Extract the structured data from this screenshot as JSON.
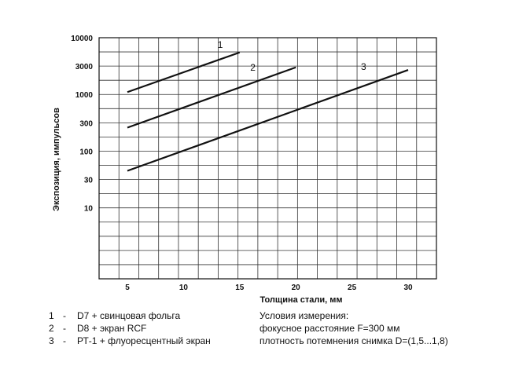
{
  "chart_data": {
    "type": "line",
    "xlabel": "Толщина стали, мм",
    "ylabel": "Экспозиция, импульсов",
    "x_ticks": [
      5,
      10,
      15,
      20,
      25,
      30
    ],
    "y_ticks": [
      "10000",
      "3000",
      "1000",
      "300",
      "100",
      "30",
      "10"
    ],
    "y_scale": "log",
    "grid": true,
    "series": [
      {
        "name": "1",
        "x": [
          5,
          15
        ],
        "y": [
          1100,
          5500
        ]
      },
      {
        "name": "2",
        "x": [
          5,
          20
        ],
        "y": [
          260,
          3000
        ]
      },
      {
        "name": "3",
        "x": [
          5,
          30
        ],
        "y": [
          45,
          2700
        ]
      }
    ]
  },
  "legend": [
    {
      "num": "1",
      "dash": "-",
      "text": "D7 + свинцовая фольга"
    },
    {
      "num": "2",
      "dash": "-",
      "text": "D8 + экран RCF"
    },
    {
      "num": "3",
      "dash": "-",
      "text": "РТ-1 + флуоресцентный экран"
    }
  ],
  "conditions": [
    "Условия измерения:",
    "фокусное расстояние F=300 мм",
    "плотность потемнения снимка D=(1,5...1,8)"
  ]
}
